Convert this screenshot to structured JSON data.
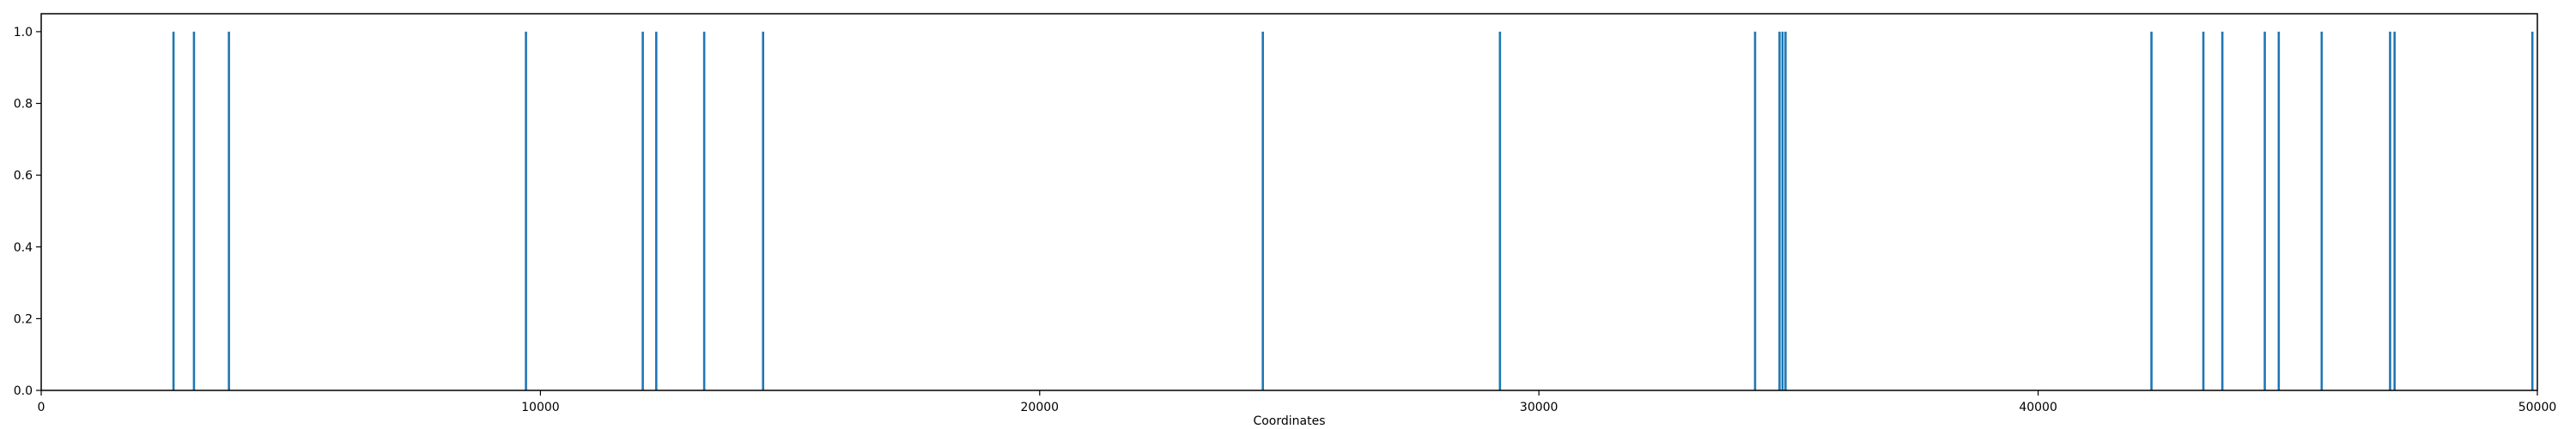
{
  "chart_data": {
    "type": "bar",
    "title": "",
    "xlabel": "Coordinates",
    "ylabel": "",
    "xlim": [
      0,
      50000
    ],
    "ylim": [
      0,
      1.05
    ],
    "grid": false,
    "x_ticks": [
      0,
      10000,
      20000,
      30000,
      40000,
      50000
    ],
    "y_ticks": [
      0.0,
      0.2,
      0.4,
      0.6,
      0.8,
      1.0
    ],
    "x_tick_labels": [
      "0",
      "10000",
      "20000",
      "30000",
      "40000",
      "50000"
    ],
    "y_tick_labels": [
      "0.0",
      "0.2",
      "0.4",
      "0.6",
      "0.8",
      "1.0"
    ],
    "bar_color": "#1f77b4",
    "series": [
      {
        "x": [
          2650,
          3060,
          3760,
          9710,
          12050,
          12320,
          13280,
          14460,
          24470,
          29220,
          34330,
          34820,
          34880,
          34940,
          42270,
          43310,
          43690,
          44540,
          44820,
          45680,
          47050,
          47140,
          49900
        ],
        "values": [
          1,
          1,
          1,
          1,
          1,
          1,
          1,
          1,
          1,
          1,
          1,
          1,
          1,
          1,
          1,
          1,
          1,
          1,
          1,
          1,
          1,
          1,
          1
        ]
      }
    ]
  }
}
